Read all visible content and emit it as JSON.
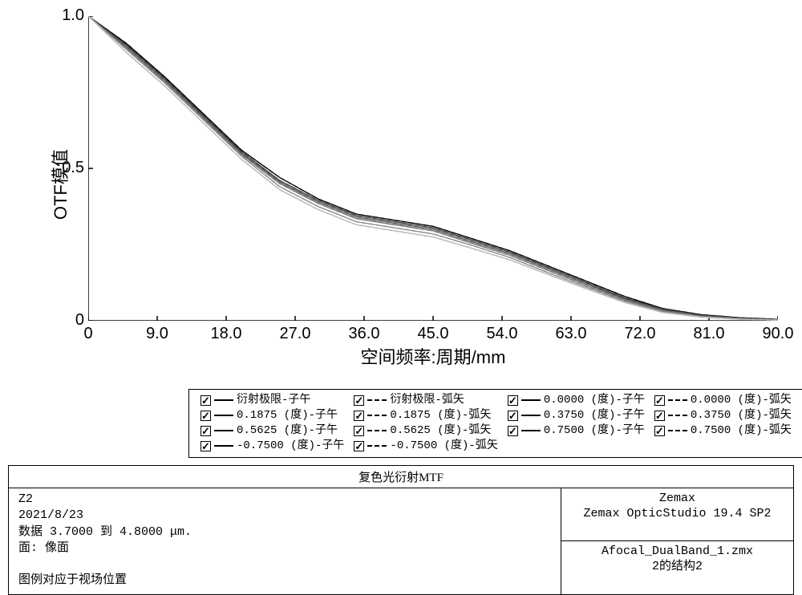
{
  "chart": {
    "type": "line",
    "ylabel": "OTF模值",
    "xlabel": "空间频率:周期/mm",
    "xlim": [
      0,
      90
    ],
    "ylim": [
      0,
      1.0
    ],
    "xticks": [
      0,
      9.0,
      18.0,
      27.0,
      36.0,
      45.0,
      54.0,
      63.0,
      72.0,
      81.0,
      90.0
    ],
    "xtick_labels": [
      "0",
      "9.0",
      "18.0",
      "27.0",
      "36.0",
      "45.0",
      "54.0",
      "63.0",
      "72.0",
      "81.0",
      "90.0"
    ],
    "yticks": [
      0,
      0.5,
      1.0
    ],
    "ytick_labels": [
      "0",
      "0.5",
      "1.0"
    ],
    "axis_color": "#000000",
    "background_color": "#ffffff",
    "tick_len": 6,
    "label_fontsize": 22,
    "tick_fontsize": 20,
    "line_width": 1.3,
    "series": [
      {
        "name": "衍射极限-子午",
        "dash": "solid",
        "color": "#000000",
        "x": [
          0,
          5,
          10,
          15,
          20,
          25,
          30,
          35,
          40,
          45,
          50,
          55,
          60,
          65,
          70,
          75,
          80,
          85,
          90
        ],
        "y": [
          1.0,
          0.91,
          0.8,
          0.68,
          0.56,
          0.47,
          0.4,
          0.35,
          0.33,
          0.31,
          0.27,
          0.23,
          0.18,
          0.13,
          0.08,
          0.04,
          0.02,
          0.01,
          0.005
        ]
      },
      {
        "name": "衍射极限-弧矢",
        "dash": "dash",
        "color": "#000000",
        "x": [
          0,
          5,
          10,
          15,
          20,
          25,
          30,
          35,
          40,
          45,
          50,
          55,
          60,
          65,
          70,
          75,
          80,
          85,
          90
        ],
        "y": [
          1.0,
          0.91,
          0.8,
          0.68,
          0.56,
          0.47,
          0.4,
          0.35,
          0.33,
          0.31,
          0.27,
          0.23,
          0.18,
          0.13,
          0.08,
          0.04,
          0.02,
          0.01,
          0.005
        ]
      },
      {
        "name": "0.0000 (度)-子午",
        "dash": "solid",
        "color": "#3a3a3a",
        "x": [
          0,
          5,
          10,
          15,
          20,
          25,
          30,
          35,
          40,
          45,
          50,
          55,
          60,
          65,
          70,
          75,
          80,
          85,
          90
        ],
        "y": [
          1.0,
          0.905,
          0.795,
          0.675,
          0.555,
          0.46,
          0.395,
          0.345,
          0.325,
          0.305,
          0.265,
          0.225,
          0.175,
          0.125,
          0.075,
          0.038,
          0.018,
          0.009,
          0.004
        ]
      },
      {
        "name": "0.0000 (度)-弧矢",
        "dash": "dash",
        "color": "#3a3a3a",
        "x": [
          0,
          5,
          10,
          15,
          20,
          25,
          30,
          35,
          40,
          45,
          50,
          55,
          60,
          65,
          70,
          75,
          80,
          85,
          90
        ],
        "y": [
          1.0,
          0.905,
          0.795,
          0.675,
          0.555,
          0.46,
          0.395,
          0.345,
          0.325,
          0.305,
          0.265,
          0.225,
          0.175,
          0.125,
          0.075,
          0.038,
          0.018,
          0.009,
          0.004
        ]
      },
      {
        "name": "0.1875 (度)-子午",
        "dash": "solid",
        "color": "#555555",
        "x": [
          0,
          5,
          10,
          15,
          20,
          25,
          30,
          35,
          40,
          45,
          50,
          55,
          60,
          65,
          70,
          75,
          80,
          85,
          90
        ],
        "y": [
          1.0,
          0.9,
          0.79,
          0.67,
          0.55,
          0.455,
          0.39,
          0.34,
          0.32,
          0.3,
          0.26,
          0.22,
          0.17,
          0.12,
          0.072,
          0.036,
          0.017,
          0.008,
          0.004
        ]
      },
      {
        "name": "0.1875 (度)-弧矢",
        "dash": "dash",
        "color": "#555555",
        "x": [
          0,
          5,
          10,
          15,
          20,
          25,
          30,
          35,
          40,
          45,
          50,
          55,
          60,
          65,
          70,
          75,
          80,
          85,
          90
        ],
        "y": [
          1.0,
          0.9,
          0.79,
          0.67,
          0.55,
          0.455,
          0.39,
          0.34,
          0.32,
          0.3,
          0.26,
          0.22,
          0.17,
          0.12,
          0.072,
          0.036,
          0.017,
          0.008,
          0.004
        ]
      },
      {
        "name": "0.3750 (度)-子午",
        "dash": "solid",
        "color": "#707070",
        "x": [
          0,
          5,
          10,
          15,
          20,
          25,
          30,
          35,
          40,
          45,
          50,
          55,
          60,
          65,
          70,
          75,
          80,
          85,
          90
        ],
        "y": [
          1.0,
          0.895,
          0.785,
          0.665,
          0.545,
          0.45,
          0.385,
          0.335,
          0.315,
          0.295,
          0.255,
          0.215,
          0.165,
          0.115,
          0.068,
          0.033,
          0.015,
          0.007,
          0.003
        ]
      },
      {
        "name": "0.3750 (度)-弧矢",
        "dash": "dash",
        "color": "#707070",
        "x": [
          0,
          5,
          10,
          15,
          20,
          25,
          30,
          35,
          40,
          45,
          50,
          55,
          60,
          65,
          70,
          75,
          80,
          85,
          90
        ],
        "y": [
          1.0,
          0.895,
          0.785,
          0.665,
          0.545,
          0.45,
          0.385,
          0.335,
          0.315,
          0.295,
          0.255,
          0.215,
          0.165,
          0.115,
          0.068,
          0.033,
          0.015,
          0.007,
          0.003
        ]
      },
      {
        "name": "0.5625 (度)-子午",
        "dash": "solid",
        "color": "#888888",
        "x": [
          0,
          5,
          10,
          15,
          20,
          25,
          30,
          35,
          40,
          45,
          50,
          55,
          60,
          65,
          70,
          75,
          80,
          85,
          90
        ],
        "y": [
          1.0,
          0.89,
          0.78,
          0.66,
          0.54,
          0.44,
          0.375,
          0.325,
          0.305,
          0.285,
          0.248,
          0.208,
          0.158,
          0.11,
          0.064,
          0.03,
          0.013,
          0.006,
          0.003
        ]
      },
      {
        "name": "0.5625 (度)-弧矢",
        "dash": "dash",
        "color": "#888888",
        "x": [
          0,
          5,
          10,
          15,
          20,
          25,
          30,
          35,
          40,
          45,
          50,
          55,
          60,
          65,
          70,
          75,
          80,
          85,
          90
        ],
        "y": [
          1.0,
          0.89,
          0.78,
          0.66,
          0.54,
          0.44,
          0.375,
          0.325,
          0.305,
          0.285,
          0.248,
          0.208,
          0.158,
          0.11,
          0.064,
          0.03,
          0.013,
          0.006,
          0.003
        ]
      },
      {
        "name": "0.7500 (度)-子午",
        "dash": "solid",
        "color": "#a5a5a5",
        "x": [
          0,
          5,
          10,
          15,
          20,
          25,
          30,
          35,
          40,
          45,
          50,
          55,
          60,
          65,
          70,
          75,
          80,
          85,
          90
        ],
        "y": [
          1.0,
          0.88,
          0.77,
          0.65,
          0.53,
          0.43,
          0.365,
          0.315,
          0.295,
          0.275,
          0.238,
          0.2,
          0.152,
          0.105,
          0.06,
          0.027,
          0.012,
          0.005,
          0.002
        ]
      },
      {
        "name": "0.7500 (度)-弧矢",
        "dash": "dash",
        "color": "#a5a5a5",
        "x": [
          0,
          5,
          10,
          15,
          20,
          25,
          30,
          35,
          40,
          45,
          50,
          55,
          60,
          65,
          70,
          75,
          80,
          85,
          90
        ],
        "y": [
          1.0,
          0.88,
          0.77,
          0.65,
          0.53,
          0.43,
          0.365,
          0.315,
          0.295,
          0.275,
          0.238,
          0.2,
          0.152,
          0.105,
          0.06,
          0.027,
          0.012,
          0.005,
          0.002
        ]
      },
      {
        "name": "-0.7500 (度)-子午",
        "dash": "solid",
        "color": "#bdbdbd",
        "x": [
          0,
          5,
          10,
          15,
          20,
          25,
          30,
          35,
          40,
          45,
          50,
          55,
          60,
          65,
          70,
          75,
          80,
          85,
          90
        ],
        "y": [
          1.0,
          0.88,
          0.77,
          0.65,
          0.53,
          0.43,
          0.365,
          0.315,
          0.295,
          0.275,
          0.238,
          0.2,
          0.152,
          0.105,
          0.06,
          0.027,
          0.012,
          0.005,
          0.002
        ]
      },
      {
        "name": "-0.7500 (度)-弧矢",
        "dash": "dash",
        "color": "#bdbdbd",
        "x": [
          0,
          5,
          10,
          15,
          20,
          25,
          30,
          35,
          40,
          45,
          50,
          55,
          60,
          65,
          70,
          75,
          80,
          85,
          90
        ],
        "y": [
          1.0,
          0.88,
          0.77,
          0.65,
          0.53,
          0.43,
          0.365,
          0.315,
          0.295,
          0.275,
          0.238,
          0.2,
          0.152,
          0.105,
          0.06,
          0.027,
          0.012,
          0.005,
          0.002
        ]
      }
    ]
  },
  "legend": {
    "rows": [
      [
        {
          "style": "solid",
          "label": "衍射极限-子午"
        },
        {
          "style": "dash",
          "label": "衍射极限-弧矢"
        },
        {
          "style": "solid",
          "label": "0.0000 (度)-子午"
        },
        {
          "style": "dash",
          "label": "0.0000 (度)-弧矢"
        }
      ],
      [
        {
          "style": "solid",
          "label": "0.1875 (度)-子午"
        },
        {
          "style": "dash",
          "label": "0.1875 (度)-弧矢"
        },
        {
          "style": "solid",
          "label": "0.3750 (度)-子午"
        },
        {
          "style": "dash",
          "label": "0.3750 (度)-弧矢"
        }
      ],
      [
        {
          "style": "solid",
          "label": "0.5625 (度)-子午"
        },
        {
          "style": "dash",
          "label": "0.5625 (度)-弧矢"
        },
        {
          "style": "solid",
          "label": "0.7500 (度)-子午"
        },
        {
          "style": "dash",
          "label": "0.7500 (度)-弧矢"
        }
      ],
      [
        {
          "style": "solid",
          "label": "-0.7500 (度)-子午"
        },
        {
          "style": "dash",
          "label": "-0.7500 (度)-弧矢"
        }
      ]
    ]
  },
  "info": {
    "title": "复色光衍射MTF",
    "left_lines": [
      "Z2",
      "2021/8/23",
      "数据 3.7000 到 4.8000 μm.",
      "面: 像面",
      "",
      "图例对应于视场位置"
    ],
    "right_top_lines": [
      "Zemax",
      "Zemax OpticStudio 19.4 SP2"
    ],
    "right_bot_lines": [
      "Afocal_DualBand_1.zmx",
      "2的结构2"
    ]
  }
}
